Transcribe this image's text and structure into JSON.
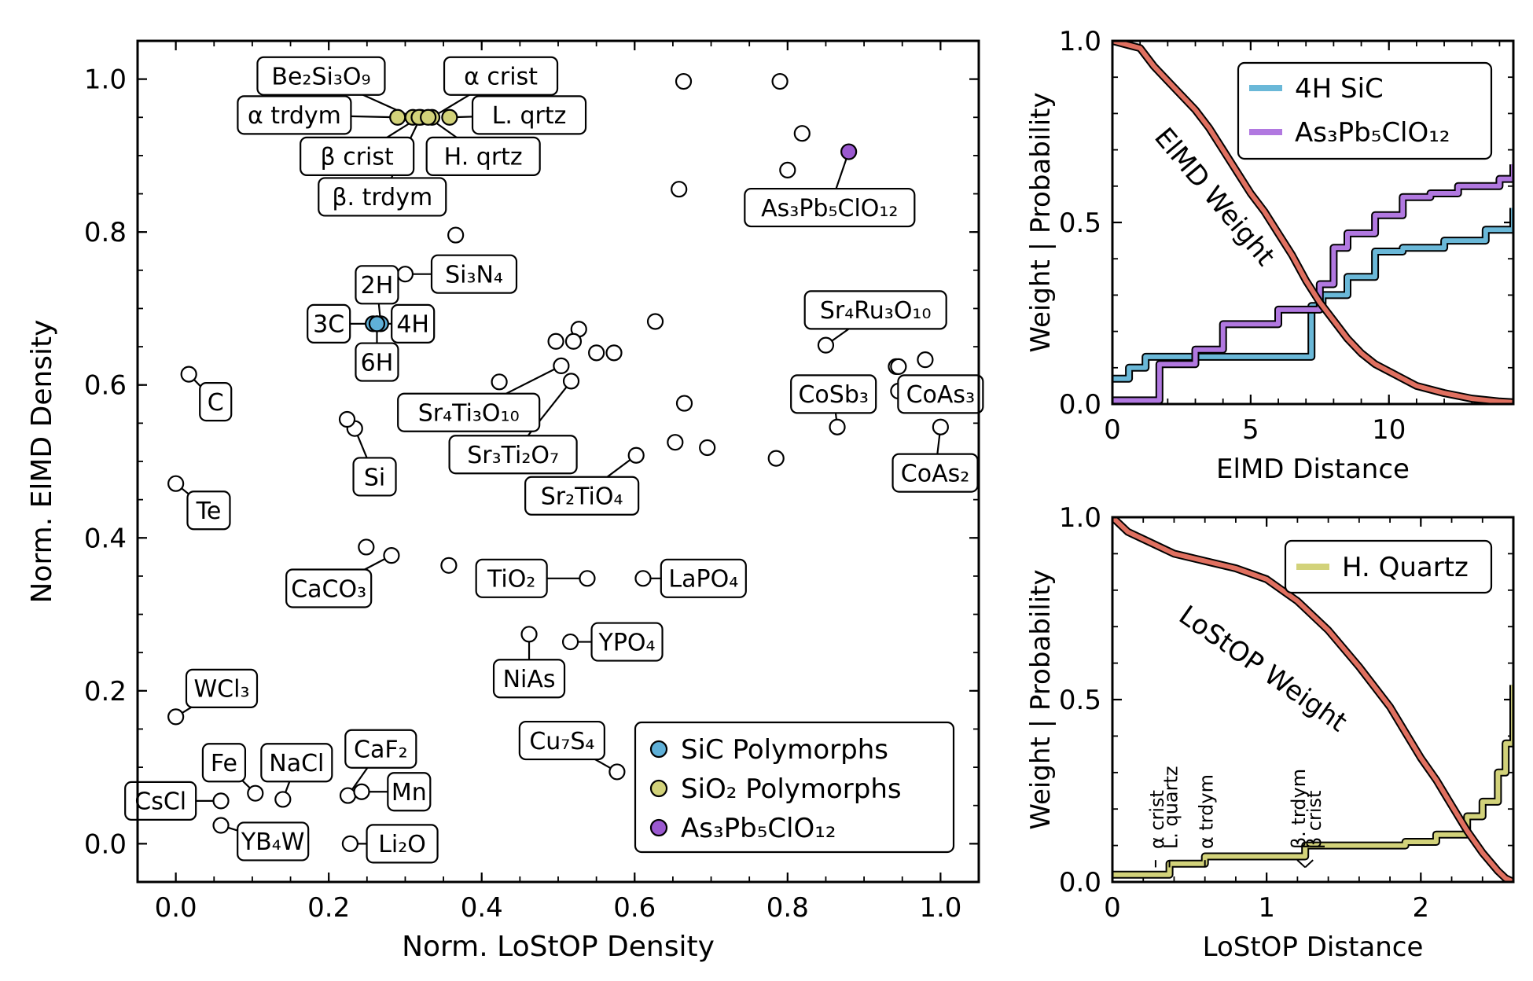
{
  "chart_data": [
    {
      "type": "scatter",
      "xlabel": "Norm. LoStOP Density",
      "ylabel": "Norm. ElMD Density",
      "xlim": [
        -0.05,
        1.05
      ],
      "ylim": [
        -0.05,
        1.05
      ],
      "xticks": [
        "0.0",
        "0.2",
        "0.4",
        "0.6",
        "0.8",
        "1.0"
      ],
      "yticks": [
        "0.0",
        "0.2",
        "0.4",
        "0.6",
        "0.8",
        "1.0"
      ],
      "grid": false,
      "legend_position": "bottom-right",
      "legend": [
        {
          "label": "SiC Polymorphs",
          "color": "#5fb0d8"
        },
        {
          "label": "SiO₂ Polymorphs",
          "color": "#d2d27a"
        },
        {
          "label": "As₃Pb₅ClO₁₂",
          "color": "#9b59d0"
        }
      ],
      "points": [
        {
          "x": 0.32,
          "y": 0.95,
          "group": "SiO2",
          "label": "β. trdym",
          "lx": 0.27,
          "ly": 0.846
        },
        {
          "x": 0.29,
          "y": 0.95,
          "group": "SiO2",
          "label": "α trdym",
          "lx": 0.155,
          "ly": 0.953
        },
        {
          "x": 0.335,
          "y": 0.95,
          "group": "SiO2",
          "label": "α crist",
          "lx": 0.425,
          "ly": 1.004
        },
        {
          "x": 0.358,
          "y": 0.95,
          "group": "SiO2",
          "label": "L. qrtz",
          "lx": 0.462,
          "ly": 0.953
        },
        {
          "x": 0.31,
          "y": 0.95,
          "group": "SiO2",
          "label": "Be₂Si₃O₉",
          "lx": 0.19,
          "ly": 1.004
        },
        {
          "x": 0.318,
          "y": 0.95,
          "group": "SiO2",
          "label": "β crist",
          "lx": 0.237,
          "ly": 0.899
        },
        {
          "x": 0.33,
          "y": 0.95,
          "group": "SiO2",
          "label": "H. qrtz",
          "lx": 0.402,
          "ly": 0.899
        },
        {
          "x": 0.88,
          "y": 0.905,
          "group": "As",
          "label": "As₃Pb₅ClO₁₂",
          "lx": 0.855,
          "ly": 0.832
        },
        {
          "x": 0.263,
          "y": 0.68,
          "group": "SiC",
          "label": "4H",
          "lx": 0.31,
          "ly": 0.68
        },
        {
          "x": 0.268,
          "y": 0.68,
          "group": "SiC",
          "label": "2H",
          "lx": 0.263,
          "ly": 0.731
        },
        {
          "x": 0.258,
          "y": 0.68,
          "group": "SiC",
          "label": "3C",
          "lx": 0.2,
          "ly": 0.68
        },
        {
          "x": 0.263,
          "y": 0.68,
          "group": "SiC",
          "label": "6H",
          "lx": 0.263,
          "ly": 0.63
        },
        {
          "x": 0.3,
          "y": 0.745,
          "label": "Si₃N₄",
          "lx": 0.39,
          "ly": 0.745
        },
        {
          "x": 0.366,
          "y": 0.796
        },
        {
          "x": 0.017,
          "y": 0.614,
          "label": "C",
          "lx": 0.052,
          "ly": 0.578
        },
        {
          "x": 0.0,
          "y": 0.471,
          "label": "Te",
          "lx": 0.043,
          "ly": 0.436
        },
        {
          "x": 0.234,
          "y": 0.543,
          "label": "Si",
          "lx": 0.26,
          "ly": 0.48
        },
        {
          "x": 0.224,
          "y": 0.555
        },
        {
          "x": 0.249,
          "y": 0.388
        },
        {
          "x": 0.282,
          "y": 0.377,
          "label": "CaCO₃",
          "lx": 0.2,
          "ly": 0.334
        },
        {
          "x": 0.357,
          "y": 0.364
        },
        {
          "x": 0.0,
          "y": 0.166,
          "label": "WCl₃",
          "lx": 0.06,
          "ly": 0.203
        },
        {
          "x": 0.059,
          "y": 0.056,
          "label": "CsCl",
          "lx": -0.02,
          "ly": 0.056
        },
        {
          "x": 0.104,
          "y": 0.066,
          "label": "Fe",
          "lx": 0.063,
          "ly": 0.106
        },
        {
          "x": 0.14,
          "y": 0.058,
          "label": "NaCl",
          "lx": 0.158,
          "ly": 0.106
        },
        {
          "x": 0.059,
          "y": 0.024,
          "label": "YB₄W",
          "lx": 0.127,
          "ly": 0.003
        },
        {
          "x": 0.225,
          "y": 0.063,
          "label": "CaF₂",
          "lx": 0.268,
          "ly": 0.124
        },
        {
          "x": 0.243,
          "y": 0.068,
          "label": "Mn",
          "lx": 0.305,
          "ly": 0.068
        },
        {
          "x": 0.228,
          "y": 0.0,
          "label": "Li₂O",
          "lx": 0.296,
          "ly": 0.0
        },
        {
          "x": 0.423,
          "y": 0.604
        },
        {
          "x": 0.497,
          "y": 0.657
        },
        {
          "x": 0.527,
          "y": 0.673
        },
        {
          "x": 0.52,
          "y": 0.657
        },
        {
          "x": 0.55,
          "y": 0.642
        },
        {
          "x": 0.573,
          "y": 0.642
        },
        {
          "x": 0.504,
          "y": 0.625,
          "label": "Sr₄Ti₃O₁₀",
          "lx": 0.383,
          "ly": 0.564
        },
        {
          "x": 0.517,
          "y": 0.605,
          "label": "Sr₃Ti₂O₇",
          "lx": 0.441,
          "ly": 0.509
        },
        {
          "x": 0.602,
          "y": 0.508,
          "label": "Sr₂TiO₄",
          "lx": 0.531,
          "ly": 0.455
        },
        {
          "x": 0.538,
          "y": 0.347,
          "label": "TiO₂",
          "lx": 0.439,
          "ly": 0.347
        },
        {
          "x": 0.462,
          "y": 0.274,
          "label": "NiAs",
          "lx": 0.462,
          "ly": 0.216
        },
        {
          "x": 0.516,
          "y": 0.264,
          "label": "YPO₄",
          "lx": 0.59,
          "ly": 0.264
        },
        {
          "x": 0.611,
          "y": 0.347,
          "label": "LaPO₄",
          "lx": 0.69,
          "ly": 0.347
        },
        {
          "x": 0.577,
          "y": 0.094,
          "label": "Cu₇S₄",
          "lx": 0.505,
          "ly": 0.135
        },
        {
          "x": 0.627,
          "y": 0.683
        },
        {
          "x": 0.664,
          "y": 0.997
        },
        {
          "x": 0.79,
          "y": 0.997
        },
        {
          "x": 0.819,
          "y": 0.929
        },
        {
          "x": 0.8,
          "y": 0.881
        },
        {
          "x": 0.658,
          "y": 0.856
        },
        {
          "x": 0.665,
          "y": 0.576
        },
        {
          "x": 0.653,
          "y": 0.525
        },
        {
          "x": 0.695,
          "y": 0.518
        },
        {
          "x": 0.785,
          "y": 0.504
        },
        {
          "x": 0.85,
          "y": 0.652,
          "label": "Sr₄Ru₃O₁₀",
          "lx": 0.915,
          "ly": 0.698
        },
        {
          "x": 0.865,
          "y": 0.545,
          "label": "CoSb₃",
          "lx": 0.86,
          "ly": 0.588
        },
        {
          "x": 0.942,
          "y": 0.624
        },
        {
          "x": 0.945,
          "y": 0.592,
          "label": "CoAs₃",
          "lx": 1.0,
          "ly": 0.588
        },
        {
          "x": 0.945,
          "y": 0.624
        },
        {
          "x": 0.98,
          "y": 0.633
        },
        {
          "x": 1.0,
          "y": 0.545,
          "label": "CoAs₂",
          "lx": 0.993,
          "ly": 0.485
        }
      ]
    },
    {
      "type": "line",
      "xlabel": "ElMD Distance",
      "ylabel": "Weight | Probability",
      "xlim": [
        0,
        14.5
      ],
      "ylim": [
        0,
        1
      ],
      "xticks": [
        "0",
        "5",
        "10"
      ],
      "yticks": [
        "0.0",
        "0.5",
        "1.0"
      ],
      "legend_position": "top-right",
      "annotation": "ElMD Weight",
      "series": [
        {
          "name": "ElMD Weight",
          "color": "#e07060",
          "x": [
            0,
            0.5,
            1,
            1.5,
            2,
            2.5,
            3,
            3.5,
            4,
            4.5,
            5,
            5.5,
            6,
            6.5,
            7,
            7.5,
            8,
            8.5,
            9,
            9.5,
            10,
            11,
            12,
            13,
            14,
            14.5
          ],
          "y": [
            1.0,
            0.99,
            0.98,
            0.93,
            0.89,
            0.85,
            0.81,
            0.76,
            0.7,
            0.64,
            0.58,
            0.53,
            0.47,
            0.41,
            0.34,
            0.28,
            0.23,
            0.18,
            0.14,
            0.11,
            0.09,
            0.05,
            0.03,
            0.015,
            0.007,
            0.005
          ]
        },
        {
          "name": "4H SiC",
          "color": "#6ab8d8",
          "x": [
            0,
            0.6,
            1.2,
            5.0,
            6.9,
            7.2,
            7.6,
            8.5,
            9.5,
            10.5,
            12,
            13.5,
            14.5
          ],
          "y": [
            0.07,
            0.1,
            0.13,
            0.13,
            0.13,
            0.27,
            0.3,
            0.35,
            0.42,
            0.43,
            0.45,
            0.48,
            0.54
          ]
        },
        {
          "name": "As₃Pb₅ClO₁₂",
          "color": "#b178e0",
          "x": [
            0,
            1.0,
            1.7,
            3.0,
            4.0,
            6.0,
            7.5,
            8.0,
            8.5,
            9.5,
            10.5,
            11.5,
            12.5,
            14.0,
            14.5
          ],
          "y": [
            0.01,
            0.01,
            0.11,
            0.15,
            0.22,
            0.26,
            0.33,
            0.43,
            0.47,
            0.52,
            0.57,
            0.58,
            0.6,
            0.62,
            0.66
          ]
        }
      ]
    },
    {
      "type": "line",
      "xlabel": "LoStOP Distance",
      "ylabel": "Weight | Probability",
      "xlim": [
        0,
        2.6
      ],
      "ylim": [
        0,
        1
      ],
      "xticks": [
        "0",
        "1",
        "2"
      ],
      "yticks": [
        "0.0",
        "0.5",
        "1.0"
      ],
      "legend_position": "top-right",
      "annotation": "LoStOP Weight",
      "markers": [
        {
          "label": "α crist",
          "x": 0.28
        },
        {
          "label": "L. quartz",
          "x": 0.37
        },
        {
          "label": "α trdym",
          "x": 0.6
        },
        {
          "label": "β. trdym",
          "x": 1.25
        },
        {
          "label": "β crist",
          "x": 1.25
        }
      ],
      "series": [
        {
          "name": "LoStOP Weight",
          "color": "#e07060",
          "x": [
            0,
            0.1,
            0.2,
            0.4,
            0.6,
            0.8,
            1.0,
            1.2,
            1.4,
            1.6,
            1.8,
            1.9,
            2.0,
            2.1,
            2.2,
            2.3,
            2.4,
            2.5,
            2.55,
            2.6
          ],
          "y": [
            1.0,
            0.96,
            0.94,
            0.9,
            0.88,
            0.86,
            0.83,
            0.77,
            0.69,
            0.59,
            0.48,
            0.41,
            0.34,
            0.28,
            0.21,
            0.14,
            0.08,
            0.03,
            0.01,
            0.0
          ]
        },
        {
          "name": "H. Quartz",
          "color": "#d2d27a",
          "x": [
            0,
            0.25,
            0.37,
            0.6,
            1.0,
            1.25,
            1.5,
            1.9,
            2.1,
            2.3,
            2.4,
            2.5,
            2.55,
            2.6
          ],
          "y": [
            0.02,
            0.02,
            0.05,
            0.07,
            0.07,
            0.1,
            0.1,
            0.11,
            0.13,
            0.18,
            0.22,
            0.3,
            0.38,
            0.54
          ]
        }
      ]
    }
  ]
}
